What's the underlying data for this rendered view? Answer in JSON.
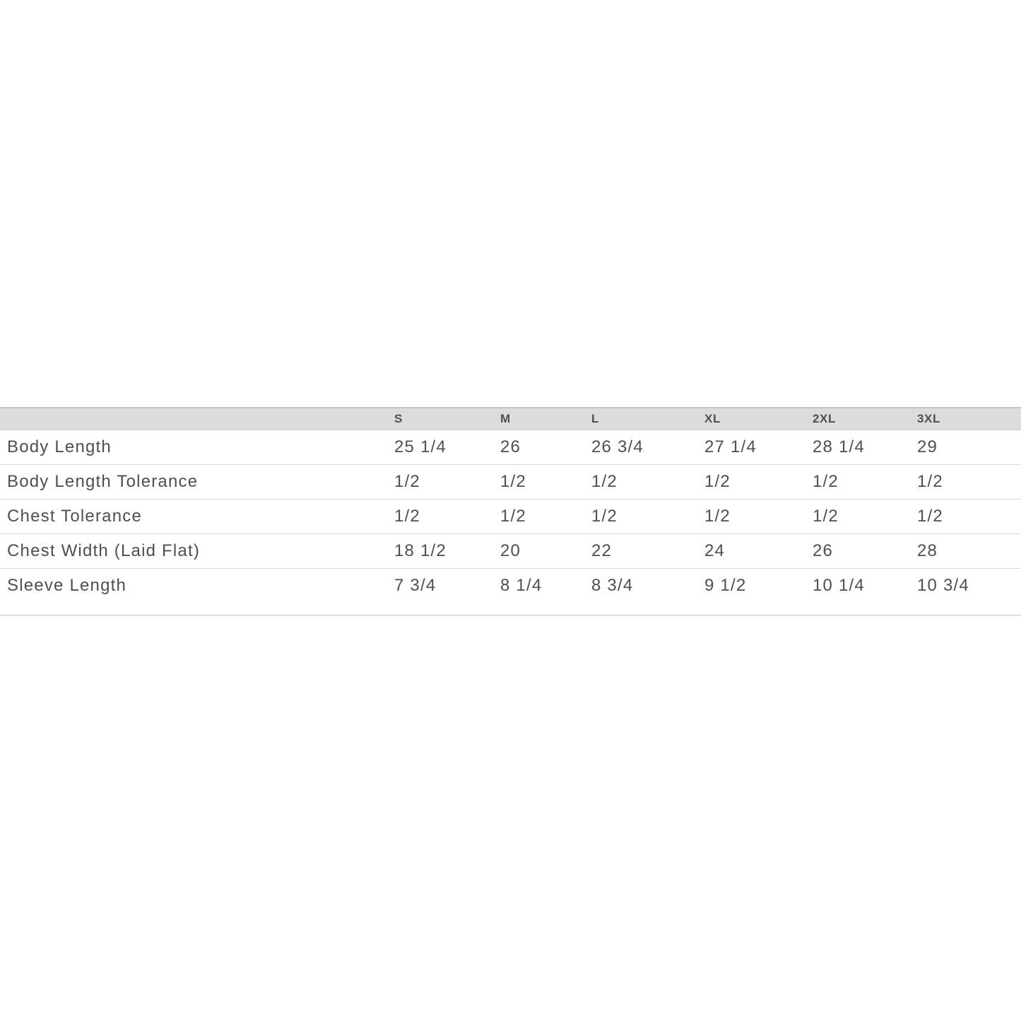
{
  "size_chart": {
    "columns": [
      "S",
      "M",
      "L",
      "XL",
      "2XL",
      "3XL"
    ],
    "rows": [
      {
        "label": "Body Length",
        "values": [
          "25 1/4",
          "26",
          "26 3/4",
          "27 1/4",
          "28 1/4",
          "29"
        ]
      },
      {
        "label": "Body Length Tolerance",
        "values": [
          "1/2",
          "1/2",
          "1/2",
          "1/2",
          "1/2",
          "1/2"
        ]
      },
      {
        "label": "Chest Tolerance",
        "values": [
          "1/2",
          "1/2",
          "1/2",
          "1/2",
          "1/2",
          "1/2"
        ]
      },
      {
        "label": "Chest Width (Laid Flat)",
        "values": [
          "18 1/2",
          "20",
          "22",
          "24",
          "26",
          "28"
        ]
      },
      {
        "label": "Sleeve Length",
        "values": [
          "7 3/4",
          "8 1/4",
          "8 3/4",
          "9 1/2",
          "10 1/4",
          "10 3/4"
        ]
      }
    ],
    "colors": {
      "header_bg": "#dcdcdc",
      "header_top_border": "#c5c5c5",
      "row_divider": "#d6d6d6",
      "bottom_border": "#dedede",
      "text": "#4f4f4f"
    }
  }
}
